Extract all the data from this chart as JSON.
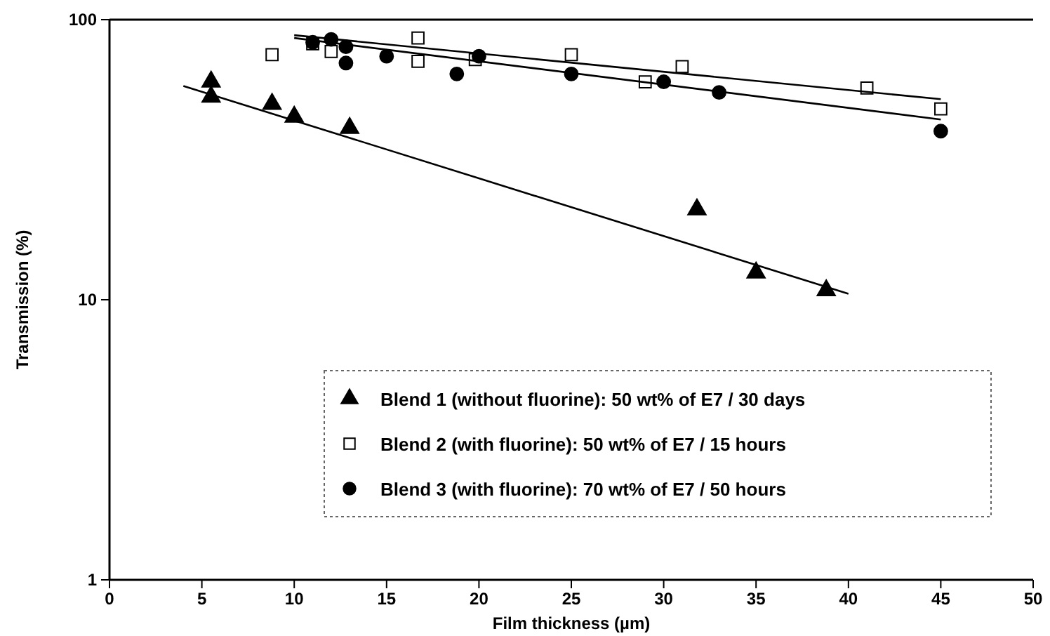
{
  "chart_data": {
    "type": "scatter",
    "xlabel": "Film thickness (µm)",
    "ylabel": "Transmission (%)",
    "xlim": [
      0,
      50
    ],
    "xticks": [
      0,
      5,
      10,
      15,
      20,
      25,
      30,
      35,
      40,
      45,
      50
    ],
    "ylim": [
      1,
      100
    ],
    "yticks": [
      1,
      10,
      100
    ],
    "log": true,
    "grid": false,
    "legend": "bottom right",
    "series": [
      {
        "name": "Blend 1 (without fluorine): 50 wt% of E7 / 30 days",
        "color": "#000000",
        "marker": "triangle",
        "x": [
          5.5,
          5.5,
          8.8,
          10,
          13,
          31.8,
          35,
          38.8
        ],
        "values": [
          60,
          53,
          50,
          45,
          41,
          21,
          12.5,
          10.8
        ]
      },
      {
        "name": "Blend 2 (with fluorine): 50 wt% of E7 / 15 hours",
        "color": "#000000",
        "marker": "square",
        "x": [
          8.8,
          11,
          12,
          16.7,
          16.7,
          19.8,
          25,
          29,
          31,
          41,
          45
        ],
        "values": [
          75,
          82,
          77,
          86,
          71,
          72,
          75,
          60,
          68,
          57,
          48
        ]
      },
      {
        "name": "Blend 3 (with fluorine): 70 wt% of E7 / 50 hours",
        "color": "#000000",
        "marker": "circle",
        "x": [
          11,
          12,
          12.8,
          12.8,
          15,
          18.8,
          20,
          25,
          30,
          33,
          45
        ],
        "values": [
          83,
          85,
          80,
          70,
          74,
          64,
          74,
          64,
          60,
          55,
          40
        ]
      },
      {
        "type": "line",
        "color": "#000000",
        "marker": "none",
        "x": [
          4,
          40
        ],
        "values": [
          58,
          10.5
        ]
      },
      {
        "type": "line",
        "color": "#000000",
        "marker": "none",
        "x": [
          10,
          45
        ],
        "values": [
          88,
          52
        ]
      },
      {
        "type": "line",
        "color": "#000000",
        "marker": "none",
        "x": [
          10,
          45
        ],
        "values": [
          86,
          44
        ]
      }
    ]
  }
}
